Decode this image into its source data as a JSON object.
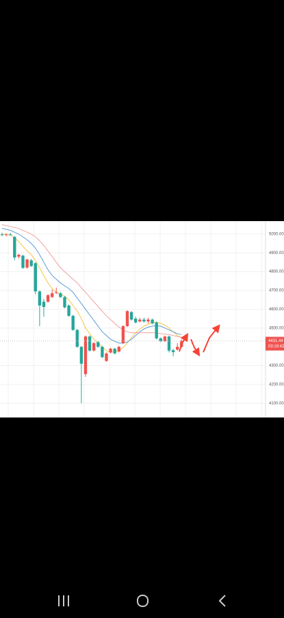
{
  "chart_data": {
    "type": "candlestick",
    "up_color": "#ef5350",
    "down_color": "#26a69a",
    "open": [
      4998,
      4996,
      4998,
      4985,
      4880,
      4885,
      4822,
      4860,
      4845,
      4695,
      4640,
      4640,
      4665,
      4688,
      4685,
      4665,
      4620,
      4565,
      4490,
      4400,
      4255,
      4455,
      4380,
      4425,
      4400,
      4325,
      4370,
      4390,
      4375,
      4420,
      4510,
      4585,
      4550,
      4535,
      4545,
      4535,
      4545,
      4530,
      4445,
      4430,
      4455,
      4382,
      4385,
      4400
    ],
    "high": [
      5008,
      5004,
      5006,
      4990,
      4895,
      4890,
      4868,
      4868,
      4850,
      4700,
      4655,
      4680,
      4705,
      4715,
      4692,
      4670,
      4625,
      4570,
      4495,
      4405,
      4460,
      4460,
      4425,
      4430,
      4405,
      4370,
      4395,
      4395,
      4405,
      4515,
      4595,
      4590,
      4560,
      4555,
      4555,
      4555,
      4550,
      4535,
      4450,
      4460,
      4460,
      4390,
      4420,
      4440
    ],
    "low": [
      4990,
      4988,
      4992,
      4860,
      4870,
      4815,
      4815,
      4825,
      4680,
      4510,
      4560,
      4635,
      4660,
      4682,
      4660,
      4605,
      4560,
      4485,
      4395,
      4100,
      4240,
      4375,
      4375,
      4395,
      4340,
      4320,
      4365,
      4360,
      4370,
      4415,
      4505,
      4540,
      4525,
      4530,
      4530,
      4525,
      4520,
      4440,
      4425,
      4425,
      4370,
      4350,
      4380,
      4395
    ],
    "close": [
      4994,
      4999,
      4995,
      4875,
      4890,
      4820,
      4865,
      4830,
      4695,
      4620,
      4612,
      4675,
      4685,
      4690,
      4665,
      4610,
      4565,
      4490,
      4400,
      4310,
      4455,
      4380,
      4420,
      4400,
      4345,
      4365,
      4390,
      4365,
      4400,
      4510,
      4590,
      4545,
      4530,
      4545,
      4535,
      4545,
      4525,
      4445,
      4430,
      4455,
      4380,
      4372,
      4400,
      4431.44
    ],
    "series": [
      {
        "color": "#f5c542",
        "values": [
          5000,
          4998,
          4995,
          4980,
          4960,
          4935,
          4910,
          4890,
          4860,
          4820,
          4780,
          4740,
          4710,
          4690,
          4680,
          4670,
          4650,
          4620,
          4590,
          4550,
          4500,
          4470,
          4440,
          4420,
          4400,
          4380,
          4370,
          4375,
          4380,
          4395,
          4420,
          4450,
          4475,
          4495,
          4510,
          4520,
          4530,
          4530,
          4525,
          4515,
          4500,
          4480,
          4460,
          4450
        ]
      },
      {
        "color": "#5b9bd5",
        "values": [
          5030,
          5025,
          5020,
          5010,
          5000,
          4985,
          4970,
          4950,
          4925,
          4890,
          4850,
          4810,
          4780,
          4760,
          4740,
          4725,
          4710,
          4690,
          4660,
          4630,
          4600,
          4570,
          4540,
          4510,
          4480,
          4460,
          4440,
          4430,
          4420,
          4420,
          4425,
          4440,
          4460,
          4480,
          4495,
          4505,
          4510,
          4512,
          4510,
          4500,
          4490,
          4480,
          4470,
          4465
        ]
      },
      {
        "color": "#f0a0a0",
        "values": [
          5050,
          5045,
          5040,
          5035,
          5030,
          5020,
          5010,
          5000,
          4985,
          4965,
          4940,
          4910,
          4880,
          4850,
          4820,
          4800,
          4780,
          4760,
          4740,
          4715,
          4690,
          4665,
          4640,
          4615,
          4590,
          4565,
          4545,
          4525,
          4505,
          4490,
          4480,
          4475,
          4475,
          4475,
          4475,
          4475,
          4475,
          4475,
          4470,
          4468,
          4465,
          4460,
          4455,
          4450
        ]
      }
    ],
    "ylim": [
      4024,
      5069
    ],
    "yticks": [
      {
        "value": 4100,
        "label": "4100.00"
      },
      {
        "value": 4200,
        "label": "4200.00"
      },
      {
        "value": 4300,
        "label": "4300.00"
      },
      {
        "value": 4500,
        "label": "4500.00"
      },
      {
        "value": 4600,
        "label": "4600.00"
      },
      {
        "value": 4700,
        "label": "4700.00"
      },
      {
        "value": 4800,
        "label": "4800.00"
      },
      {
        "value": 4900,
        "label": "4900.00"
      },
      {
        "value": 5000,
        "label": "5000.00"
      }
    ],
    "grid": true,
    "current_price": 4431.44,
    "countdown": "03:19:42"
  }
}
